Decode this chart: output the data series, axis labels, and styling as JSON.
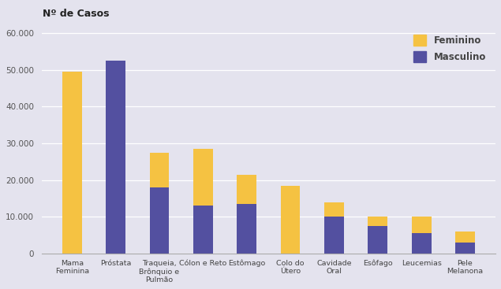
{
  "categories": [
    "Mama\nFeminina",
    "Próstata",
    "Traqueia,\nBrônquio e\nPulmão",
    "Cólon e Reto",
    "Estômago",
    "Colo do\nÚtero",
    "Cavidade\nOral",
    "Esôfago",
    "Leucemias",
    "Pele\nMelanona"
  ],
  "feminino": [
    49500,
    0,
    9500,
    15500,
    8000,
    18500,
    4000,
    2500,
    4500,
    3000
  ],
  "masculino": [
    0,
    52500,
    18000,
    13000,
    13500,
    0,
    10000,
    7500,
    5500,
    3000
  ],
  "color_feminino": "#F5C242",
  "color_masculino": "#5350A0",
  "background_color": "#E4E3EE",
  "ylabel": "Nº de Casos",
  "ylim": [
    0,
    62000
  ],
  "yticks": [
    0,
    10000,
    20000,
    30000,
    40000,
    50000,
    60000
  ],
  "ytick_labels": [
    "0",
    "10.000",
    "20.000",
    "30.000",
    "40.000",
    "50.000",
    "60.000"
  ],
  "legend_feminino": "Feminino",
  "legend_masculino": "Masculino"
}
